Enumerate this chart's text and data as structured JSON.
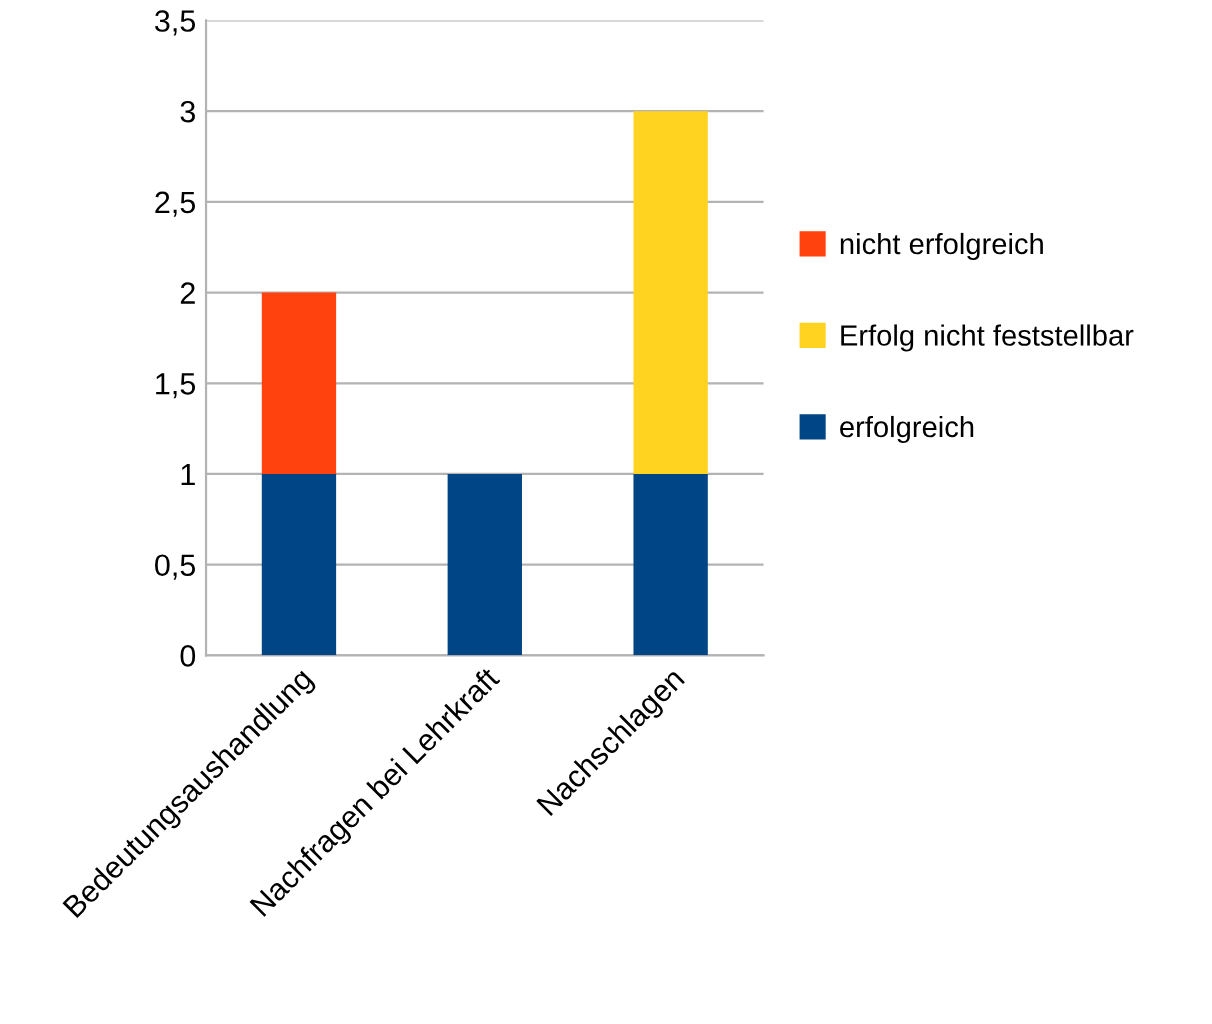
{
  "chart_data": {
    "type": "bar",
    "stacked": true,
    "categories": [
      "Bedeutungsaushandlung",
      "Nachfragen bei Lehrkraft",
      "Nachschlagen"
    ],
    "series": [
      {
        "name": "erfolgreich",
        "color": "#004586",
        "values": [
          1,
          1,
          1
        ]
      },
      {
        "name": "Erfolg nicht feststellbar",
        "color": "#ffd320",
        "values": [
          0,
          0,
          2
        ]
      },
      {
        "name": "nicht erfolgreich",
        "color": "#ff420e",
        "values": [
          1,
          0,
          0
        ]
      }
    ],
    "ylim": [
      0,
      3.5
    ],
    "yticks": [
      0,
      {
        "value": 0.5,
        "label": "0,5"
      },
      1,
      {
        "value": 1.5,
        "label": "1,5"
      },
      2,
      {
        "value": 2.5,
        "label": "2,5"
      },
      3,
      {
        "value": 3.5,
        "label": "3,5"
      }
    ],
    "grid": "y",
    "legend": "right"
  }
}
